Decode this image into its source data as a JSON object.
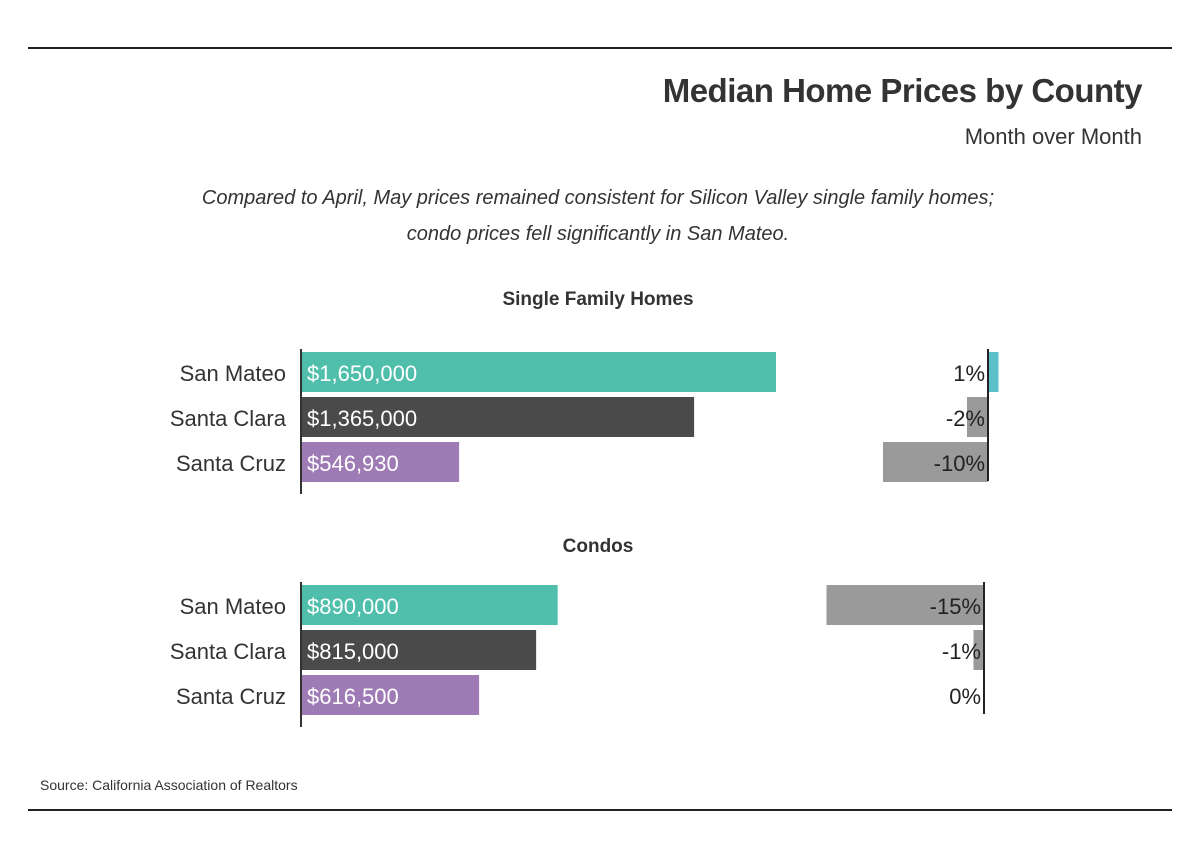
{
  "title": "Median Home Prices by County",
  "subtitle": "Month over Month",
  "description_line1": "Compared to April, May prices remained consistent for Silicon Valley single family homes;",
  "description_line2": "condo prices fell significantly in San Mateo.",
  "source": "Source:  California Association of Realtors",
  "colors": {
    "San Mateo": "#4fbfac",
    "Santa Clara": "#4a4a4a",
    "Santa Cruz": "#9e7bb5",
    "positive_change": "#5bc0c7",
    "negative_change": "#9a9a9a"
  },
  "chart_data": [
    {
      "type": "bar",
      "title": "Single Family Homes",
      "categories": [
        "San Mateo",
        "Santa Clara",
        "Santa Cruz"
      ],
      "series": [
        {
          "name": "Median Price",
          "values": [
            1650000,
            1365000,
            546930
          ],
          "labels": [
            "$1,650,000",
            "$1,365,000",
            "$546,930"
          ]
        },
        {
          "name": "Month over Month Change (%)",
          "values": [
            1,
            -2,
            -10
          ],
          "labels": [
            "1%",
            "-2%",
            "-10%"
          ]
        }
      ]
    },
    {
      "type": "bar",
      "title": "Condos",
      "categories": [
        "San Mateo",
        "Santa Clara",
        "Santa Cruz"
      ],
      "series": [
        {
          "name": "Median Price",
          "values": [
            890000,
            815000,
            616500
          ],
          "labels": [
            "$890,000",
            "$815,000",
            "$616,500"
          ]
        },
        {
          "name": "Month over Month Change (%)",
          "values": [
            -15,
            -1,
            0
          ],
          "labels": [
            "-15%",
            "-1%",
            "0%"
          ]
        }
      ]
    }
  ]
}
